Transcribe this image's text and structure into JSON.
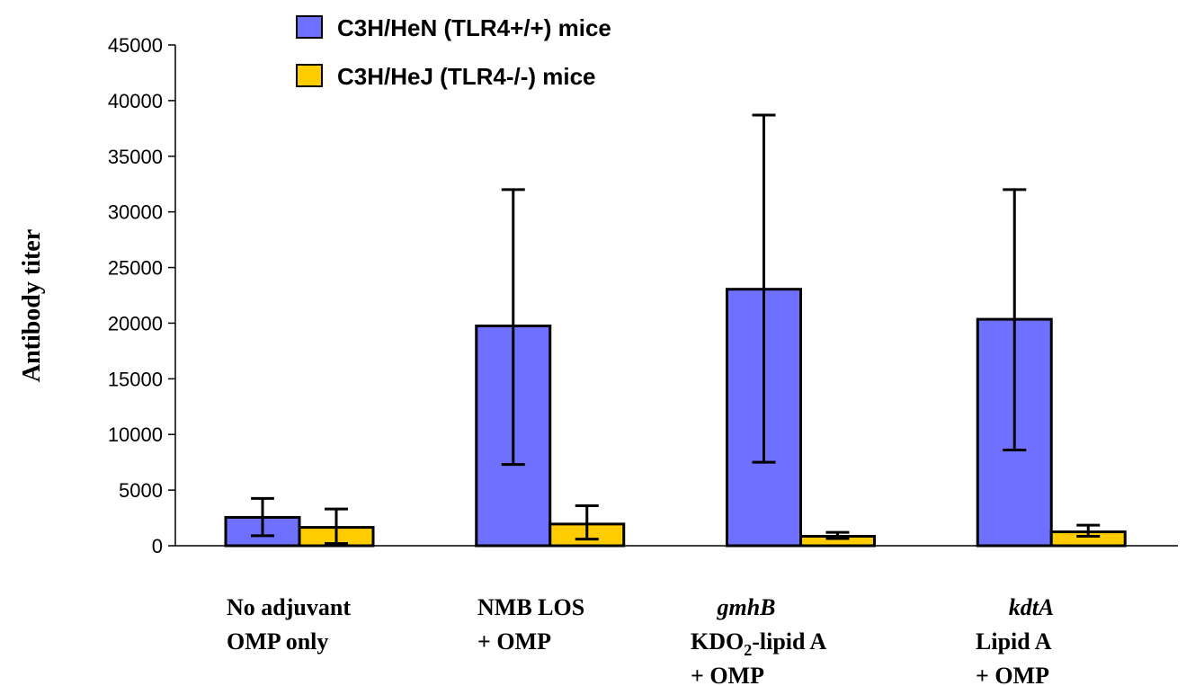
{
  "chart_data": {
    "type": "bar",
    "title": "",
    "ylabel": "Antibody titer",
    "xlabel": "",
    "ylim": [
      0,
      45000
    ],
    "yticks": [
      0,
      5000,
      10000,
      15000,
      20000,
      25000,
      30000,
      35000,
      40000,
      45000
    ],
    "ytick_labels": [
      "0",
      "5000",
      "10000",
      "15000",
      "20000",
      "25000",
      "30000",
      "35000",
      "40000",
      "45000"
    ],
    "grid": false,
    "legend_position": "top",
    "categories": [
      {
        "lines": [
          "No adjuvant",
          "OMP only"
        ]
      },
      {
        "lines": [
          "NMB LOS",
          "+ OMP"
        ]
      },
      {
        "italic_line": "gmhB",
        "lines": [
          "KDO2-lipid A",
          "+ OMP"
        ],
        "sub_pre": "KDO",
        "sub": "2",
        "sub_post": "-lipid A"
      },
      {
        "italic_line": "kdtA",
        "lines": [
          "Lipid A",
          "+ OMP"
        ]
      }
    ],
    "series": [
      {
        "name": "C3H/HeN  (TLR4+/+) mice",
        "color": "#7070ff",
        "values": [
          2550,
          19750,
          23050,
          20350
        ],
        "error_low": [
          900,
          7300,
          7500,
          8600
        ],
        "error_high": [
          4250,
          32000,
          38700,
          32000
        ]
      },
      {
        "name": "C3H/HeJ (TLR4-/-) mice",
        "color": "#ffcc00",
        "values": [
          1650,
          1950,
          850,
          1250
        ],
        "error_low": [
          200,
          600,
          650,
          850
        ],
        "error_high": [
          3300,
          3600,
          1200,
          1850
        ]
      }
    ]
  }
}
